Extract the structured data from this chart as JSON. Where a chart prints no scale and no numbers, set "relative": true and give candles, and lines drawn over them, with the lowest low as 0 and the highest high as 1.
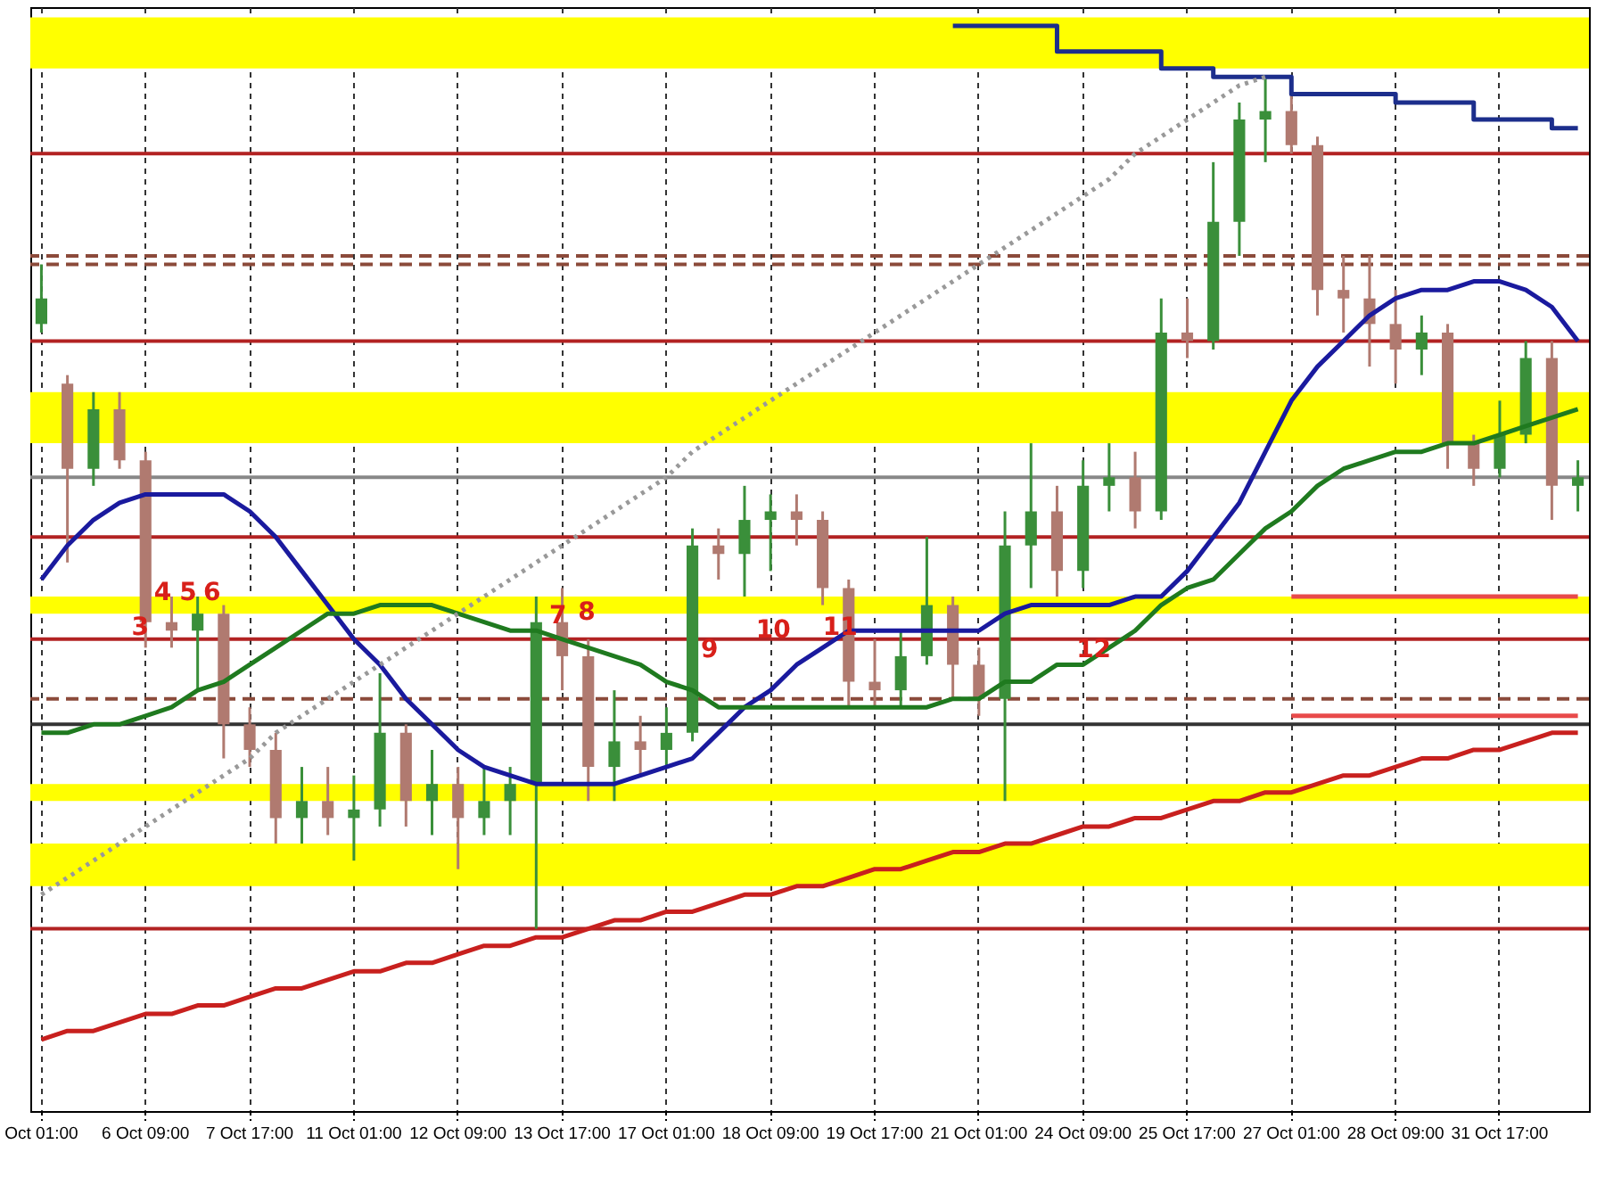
{
  "chart_data": {
    "type": "candlestick",
    "relative": true,
    "grid": "x",
    "categories": [
      "Oct 01:00",
      null,
      null,
      null,
      "6 Oct 09:00",
      null,
      null,
      null,
      "7 Oct 17:00",
      null,
      null,
      null,
      "11 Oct 01:00",
      null,
      null,
      null,
      "12 Oct 09:00",
      null,
      null,
      null,
      "13 Oct 17:00",
      null,
      null,
      null,
      "17 Oct 01:00",
      null,
      null,
      null,
      "18 Oct 09:00",
      null,
      null,
      null,
      "19 Oct 17:00",
      null,
      null,
      null,
      "21 Oct 01:00",
      null,
      null,
      null,
      "24 Oct 09:00",
      null,
      null,
      null,
      "25 Oct 17:00",
      null,
      null,
      null,
      "27 Oct 01:00",
      null,
      null,
      null,
      "28 Oct 09:00",
      null,
      null,
      null,
      "31 Oct 17:00",
      null,
      null,
      null
    ],
    "ohlc": [
      [
        0.71,
        0.78,
        0.7,
        0.74
      ],
      [
        0.64,
        0.65,
        0.43,
        0.54
      ],
      [
        0.54,
        0.63,
        0.52,
        0.61
      ],
      [
        0.61,
        0.63,
        0.54,
        0.55
      ],
      [
        0.55,
        0.56,
        0.33,
        0.36
      ],
      [
        0.36,
        0.39,
        0.33,
        0.35
      ],
      [
        0.35,
        0.39,
        0.28,
        0.37
      ],
      [
        0.37,
        0.38,
        0.2,
        0.24
      ],
      [
        0.24,
        0.26,
        0.19,
        0.21
      ],
      [
        0.21,
        0.23,
        0.1,
        0.13
      ],
      [
        0.13,
        0.19,
        0.1,
        0.15
      ],
      [
        0.15,
        0.19,
        0.11,
        0.13
      ],
      [
        0.13,
        0.18,
        0.08,
        0.14
      ],
      [
        0.14,
        0.3,
        0.12,
        0.23
      ],
      [
        0.23,
        0.24,
        0.12,
        0.15
      ],
      [
        0.15,
        0.21,
        0.11,
        0.17
      ],
      [
        0.17,
        0.19,
        0.07,
        0.13
      ],
      [
        0.13,
        0.19,
        0.11,
        0.15
      ],
      [
        0.15,
        0.19,
        0.11,
        0.17
      ],
      [
        0.17,
        0.39,
        0,
        0.36
      ],
      [
        0.36,
        0.4,
        0.28,
        0.32
      ],
      [
        0.32,
        0.34,
        0.15,
        0.19
      ],
      [
        0.19,
        0.28,
        0.15,
        0.22
      ],
      [
        0.22,
        0.25,
        0.18,
        0.21
      ],
      [
        0.21,
        0.26,
        0.19,
        0.23
      ],
      [
        0.23,
        0.47,
        0.22,
        0.45
      ],
      [
        0.45,
        0.47,
        0.41,
        0.44
      ],
      [
        0.44,
        0.52,
        0.39,
        0.48
      ],
      [
        0.48,
        0.51,
        0.42,
        0.49
      ],
      [
        0.49,
        0.51,
        0.45,
        0.48
      ],
      [
        0.48,
        0.49,
        0.38,
        0.4
      ],
      [
        0.4,
        0.41,
        0.26,
        0.29
      ],
      [
        0.29,
        0.34,
        0.26,
        0.28
      ],
      [
        0.28,
        0.35,
        0.26,
        0.32
      ],
      [
        0.32,
        0.46,
        0.31,
        0.38
      ],
      [
        0.38,
        0.39,
        0.27,
        0.31
      ],
      [
        0.31,
        0.33,
        0.25,
        0.27
      ],
      [
        0.27,
        0.49,
        0.15,
        0.45
      ],
      [
        0.45,
        0.57,
        0.4,
        0.49
      ],
      [
        0.49,
        0.52,
        0.39,
        0.42
      ],
      [
        0.42,
        0.55,
        0.4,
        0.52
      ],
      [
        0.52,
        0.57,
        0.49,
        0.53
      ],
      [
        0.53,
        0.56,
        0.47,
        0.49
      ],
      [
        0.49,
        0.74,
        0.48,
        0.7
      ],
      [
        0.7,
        0.74,
        0.67,
        0.69
      ],
      [
        0.69,
        0.9,
        0.68,
        0.83
      ],
      [
        0.83,
        0.97,
        0.79,
        0.95
      ],
      [
        0.95,
        1,
        0.9,
        0.96
      ],
      [
        0.96,
        0.98,
        0.91,
        0.92
      ],
      [
        0.92,
        0.93,
        0.72,
        0.75
      ],
      [
        0.75,
        0.79,
        0.7,
        0.74
      ],
      [
        0.74,
        0.79,
        0.66,
        0.71
      ],
      [
        0.71,
        0.75,
        0.64,
        0.68
      ],
      [
        0.68,
        0.72,
        0.65,
        0.7
      ],
      [
        0.7,
        0.71,
        0.54,
        0.57
      ],
      [
        0.57,
        0.58,
        0.52,
        0.54
      ],
      [
        0.54,
        0.62,
        0.53,
        0.58
      ],
      [
        0.58,
        0.69,
        0.57,
        0.67
      ],
      [
        0.67,
        0.69,
        0.48,
        0.52
      ],
      [
        0.52,
        0.55,
        0.49,
        0.53
      ]
    ],
    "colors": [
      "#3a8f3a",
      "#b07a70",
      "#3a8f3a",
      "#b07a70",
      "#b07a70",
      "#b07a70",
      "#3a8f3a",
      "#b07a70",
      "#b07a70",
      "#b07a70",
      "#3a8f3a",
      "#b07a70",
      "#3a8f3a",
      "#3a8f3a",
      "#b07a70",
      "#3a8f3a",
      "#b07a70",
      "#3a8f3a",
      "#3a8f3a",
      "#3a8f3a",
      "#b07a70",
      "#b07a70",
      "#3a8f3a",
      "#b07a70",
      "#3a8f3a",
      "#3a8f3a",
      "#b07a70",
      "#3a8f3a",
      "#3a8f3a",
      "#b07a70",
      "#b07a70",
      "#b07a70",
      "#b07a70",
      "#3a8f3a",
      "#3a8f3a",
      "#b07a70",
      "#b07a70",
      "#3a8f3a",
      "#3a8f3a",
      "#b07a70",
      "#3a8f3a",
      "#3a8f3a",
      "#b07a70",
      "#3a8f3a",
      "#b07a70",
      "#3a8f3a",
      "#3a8f3a",
      "#3a8f3a",
      "#b07a70",
      "#b07a70",
      "#b07a70",
      "#b07a70",
      "#b07a70",
      "#3a8f3a",
      "#b07a70",
      "#b07a70",
      "#3a8f3a",
      "#3a8f3a",
      "#b07a70",
      "#3a8f3a"
    ],
    "series": [
      {
        "type": "line",
        "color": "#1a1a9e",
        "values": [
          0.41,
          0.45,
          0.48,
          0.5,
          0.51,
          0.51,
          0.51,
          0.51,
          0.49,
          0.46,
          0.42,
          0.38,
          0.34,
          0.31,
          0.27,
          0.24,
          0.21,
          0.19,
          0.18,
          0.17,
          0.17,
          0.17,
          0.17,
          0.18,
          0.19,
          0.2,
          0.23,
          0.26,
          0.28,
          0.31,
          0.33,
          0.35,
          0.35,
          0.35,
          0.35,
          0.35,
          0.35,
          0.37,
          0.38,
          0.38,
          0.38,
          0.38,
          0.39,
          0.39,
          0.42,
          0.46,
          0.5,
          0.56,
          0.62,
          0.66,
          0.69,
          0.72,
          0.74,
          0.75,
          0.75,
          0.76,
          0.76,
          0.75,
          0.73,
          0.69
        ]
      },
      {
        "type": "line",
        "color": "#1f7a1f",
        "values": [
          0.23,
          0.23,
          0.24,
          0.24,
          0.25,
          0.26,
          0.28,
          0.29,
          0.31,
          0.33,
          0.35,
          0.37,
          0.37,
          0.38,
          0.38,
          0.38,
          0.37,
          0.36,
          0.35,
          0.35,
          0.34,
          0.33,
          0.32,
          0.31,
          0.29,
          0.28,
          0.26,
          0.26,
          0.26,
          0.26,
          0.26,
          0.26,
          0.26,
          0.26,
          0.26,
          0.27,
          0.27,
          0.29,
          0.29,
          0.31,
          0.31,
          0.33,
          0.35,
          0.38,
          0.4,
          0.41,
          0.44,
          0.47,
          0.49,
          0.52,
          0.54,
          0.55,
          0.56,
          0.56,
          0.57,
          0.57,
          0.58,
          0.59,
          0.6,
          0.61
        ]
      },
      {
        "type": "step",
        "color": "#1c2e8c",
        "values": [
          null,
          null,
          null,
          null,
          null,
          null,
          null,
          null,
          null,
          null,
          null,
          null,
          null,
          null,
          null,
          null,
          null,
          null,
          null,
          null,
          null,
          null,
          null,
          null,
          null,
          null,
          null,
          null,
          null,
          null,
          null,
          null,
          null,
          null,
          null,
          1.06,
          1.06,
          1.06,
          1.06,
          1.03,
          1.03,
          1.03,
          1.03,
          1.01,
          1.01,
          1.0,
          1.0,
          1.0,
          0.98,
          0.98,
          0.98,
          0.98,
          0.97,
          0.97,
          0.97,
          0.95,
          0.95,
          0.95,
          0.94,
          0.94
        ]
      },
      {
        "type": "line",
        "color": "#c8201e",
        "values": [
          -0.13,
          -0.12,
          -0.12,
          -0.11,
          -0.1,
          -0.1,
          -0.09,
          -0.09,
          -0.08,
          -0.07,
          -0.07,
          -0.06,
          -0.05,
          -0.05,
          -0.04,
          -0.04,
          -0.03,
          -0.02,
          -0.02,
          -0.01,
          -0.01,
          0.0,
          0.01,
          0.01,
          0.02,
          0.02,
          0.03,
          0.04,
          0.04,
          0.05,
          0.05,
          0.06,
          0.07,
          0.07,
          0.08,
          0.09,
          0.09,
          0.1,
          0.1,
          0.11,
          0.12,
          0.12,
          0.13,
          0.13,
          0.14,
          0.15,
          0.15,
          0.16,
          0.16,
          0.17,
          0.18,
          0.18,
          0.19,
          0.2,
          0.2,
          0.21,
          0.21,
          0.22,
          0.23,
          0.23
        ]
      },
      {
        "type": "line",
        "color": "#999999",
        "line_style": "dotted",
        "values": [
          0.04,
          0.06,
          0.08,
          0.1,
          0.12,
          0.14,
          0.16,
          0.18,
          0.2,
          0.23,
          0.25,
          0.27,
          0.29,
          0.31,
          0.33,
          0.35,
          0.37,
          0.39,
          0.41,
          0.43,
          0.45,
          0.47,
          0.49,
          0.51,
          0.53,
          0.56,
          0.58,
          0.6,
          0.62,
          0.64,
          0.66,
          0.68,
          0.7,
          0.72,
          0.74,
          0.76,
          0.78,
          0.8,
          0.82,
          0.84,
          0.86,
          0.88,
          0.91,
          0.93,
          0.95,
          0.97,
          0.99,
          1.0,
          null,
          null,
          null,
          null,
          null,
          null,
          null,
          null,
          null,
          null,
          null,
          null
        ]
      },
      {
        "type": "line",
        "color": "#e84a4a",
        "values": [
          null,
          null,
          null,
          null,
          null,
          null,
          null,
          null,
          null,
          null,
          null,
          null,
          null,
          null,
          null,
          null,
          null,
          null,
          null,
          null,
          null,
          null,
          null,
          null,
          null,
          null,
          null,
          null,
          null,
          null,
          null,
          null,
          null,
          null,
          null,
          null,
          null,
          null,
          null,
          null,
          null,
          null,
          null,
          null,
          null,
          null,
          null,
          null,
          0.39,
          0.39,
          0.39,
          0.39,
          0.39,
          0.39,
          0.39,
          0.39,
          0.39,
          0.39,
          0.39,
          0.39
        ]
      },
      {
        "type": "line",
        "color": "#e84a4a",
        "values": [
          null,
          null,
          null,
          null,
          null,
          null,
          null,
          null,
          null,
          null,
          null,
          null,
          null,
          null,
          null,
          null,
          null,
          null,
          null,
          null,
          null,
          null,
          null,
          null,
          null,
          null,
          null,
          null,
          null,
          null,
          null,
          null,
          null,
          null,
          null,
          null,
          null,
          null,
          null,
          null,
          null,
          null,
          null,
          null,
          null,
          null,
          null,
          null,
          0.25,
          0.25,
          0.25,
          0.25,
          0.25,
          0.25,
          0.25,
          0.25,
          0.25,
          0.25,
          0.25,
          0.25
        ]
      }
    ],
    "bands": [
      {
        "axis": "y",
        "from": 1.01,
        "to": 1.07,
        "color": "#ffff00"
      },
      {
        "axis": "y",
        "from": 0.57,
        "to": 0.63,
        "color": "#ffff00"
      },
      {
        "axis": "y",
        "from": 0.37,
        "to": 0.39,
        "color": "#ffff00"
      },
      {
        "axis": "y",
        "from": 0.15,
        "to": 0.17,
        "color": "#ffff00"
      },
      {
        "axis": "y",
        "from": 0.05,
        "to": 0.1,
        "color": "#ffff00"
      }
    ],
    "ref_lines": [
      {
        "axis": "y",
        "value": 0.91,
        "color": "#b22222"
      },
      {
        "axis": "y",
        "value": 0.69,
        "color": "#b22222"
      },
      {
        "axis": "y",
        "value": 0.46,
        "color": "#b22222"
      },
      {
        "axis": "y",
        "value": 0.34,
        "color": "#b22222"
      },
      {
        "axis": "y",
        "value": 0,
        "color": "#b22222"
      },
      {
        "axis": "y",
        "value": 0.79,
        "color": "#8b4a3a",
        "line_style": "dashed"
      },
      {
        "axis": "y",
        "value": 0.78,
        "color": "#8b4a3a",
        "line_style": "dashed"
      },
      {
        "axis": "y",
        "value": 0.27,
        "color": "#8b4a3a",
        "line_style": "dashed"
      },
      {
        "axis": "y",
        "value": 0.53,
        "color": "#888888"
      },
      {
        "axis": "y",
        "value": 0.24,
        "color": "#333333"
      }
    ],
    "annotations": [
      "3",
      "4",
      "5",
      "6",
      "7",
      "8",
      "9",
      "10",
      "11",
      "12"
    ]
  }
}
